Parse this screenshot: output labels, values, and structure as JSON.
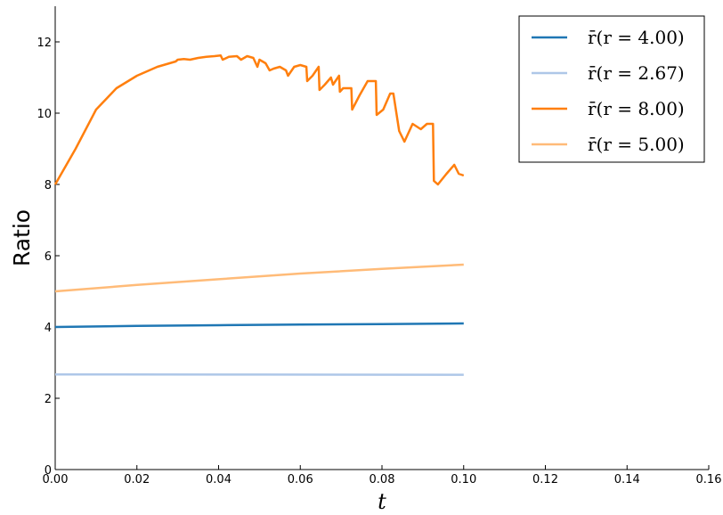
{
  "chart_data": {
    "type": "line",
    "xlabel": "t",
    "ylabel": "Ratio",
    "xlim": [
      0,
      0.16
    ],
    "ylim": [
      0,
      13
    ],
    "grid": false,
    "legend_position": "top-right",
    "xticks": [
      0.0,
      0.02,
      0.04,
      0.06,
      0.08,
      0.1,
      0.12,
      0.14,
      0.16
    ],
    "xtick_labels": [
      "0.00",
      "0.02",
      "0.04",
      "0.06",
      "0.08",
      "0.10",
      "0.12",
      "0.14",
      "0.16"
    ],
    "yticks": [
      0,
      2,
      4,
      6,
      8,
      10,
      12
    ],
    "ytick_labels": [
      "0",
      "2",
      "4",
      "6",
      "8",
      "10",
      "12"
    ],
    "series": [
      {
        "name": "r̄(r = 4.00)",
        "color": "#1f77b4",
        "x": [
          0.0,
          0.02,
          0.04,
          0.06,
          0.08,
          0.1
        ],
        "y": [
          4.0,
          4.03,
          4.05,
          4.07,
          4.08,
          4.1
        ]
      },
      {
        "name": "r̄(r = 2.67)",
        "color": "#aec7e8",
        "x": [
          0.0,
          0.05,
          0.1
        ],
        "y": [
          2.67,
          2.665,
          2.66
        ]
      },
      {
        "name": "r̄(r = 8.00)",
        "color": "#ff7f0e",
        "x": [
          0.0,
          0.005,
          0.01,
          0.015,
          0.02,
          0.025,
          0.0295,
          0.03,
          0.0315,
          0.033,
          0.035,
          0.037,
          0.039,
          0.0405,
          0.041,
          0.0425,
          0.0445,
          0.0455,
          0.047,
          0.0485,
          0.0495,
          0.05,
          0.0515,
          0.0525,
          0.0535,
          0.055,
          0.0565,
          0.057,
          0.0585,
          0.06,
          0.0615,
          0.0617,
          0.063,
          0.0645,
          0.0647,
          0.066,
          0.0675,
          0.068,
          0.0695,
          0.0697,
          0.0705,
          0.0725,
          0.0727,
          0.0745,
          0.0765,
          0.0785,
          0.0787,
          0.0803,
          0.082,
          0.0828,
          0.0842,
          0.0855,
          0.0875,
          0.0895,
          0.091,
          0.0925,
          0.0927,
          0.0937,
          0.0958,
          0.0977,
          0.0988,
          0.1
        ],
        "y": [
          8.0,
          9.0,
          10.1,
          10.7,
          11.05,
          11.3,
          11.45,
          11.5,
          11.52,
          11.5,
          11.55,
          11.58,
          11.6,
          11.62,
          11.5,
          11.58,
          11.6,
          11.5,
          11.6,
          11.55,
          11.3,
          11.5,
          11.4,
          11.2,
          11.25,
          11.3,
          11.2,
          11.05,
          11.3,
          11.35,
          11.3,
          10.9,
          11.05,
          11.3,
          10.65,
          10.8,
          11.0,
          10.8,
          11.05,
          10.6,
          10.7,
          10.7,
          10.1,
          10.5,
          10.9,
          10.9,
          9.95,
          10.1,
          10.55,
          10.55,
          9.5,
          9.2,
          9.7,
          9.55,
          9.7,
          9.7,
          8.1,
          8.0,
          8.3,
          8.55,
          8.3,
          8.25
        ]
      },
      {
        "name": "r̄(r = 5.00)",
        "color": "#ffbb78",
        "x": [
          0.0,
          0.02,
          0.04,
          0.06,
          0.08,
          0.1
        ],
        "y": [
          5.0,
          5.18,
          5.34,
          5.5,
          5.63,
          5.75
        ]
      }
    ]
  }
}
